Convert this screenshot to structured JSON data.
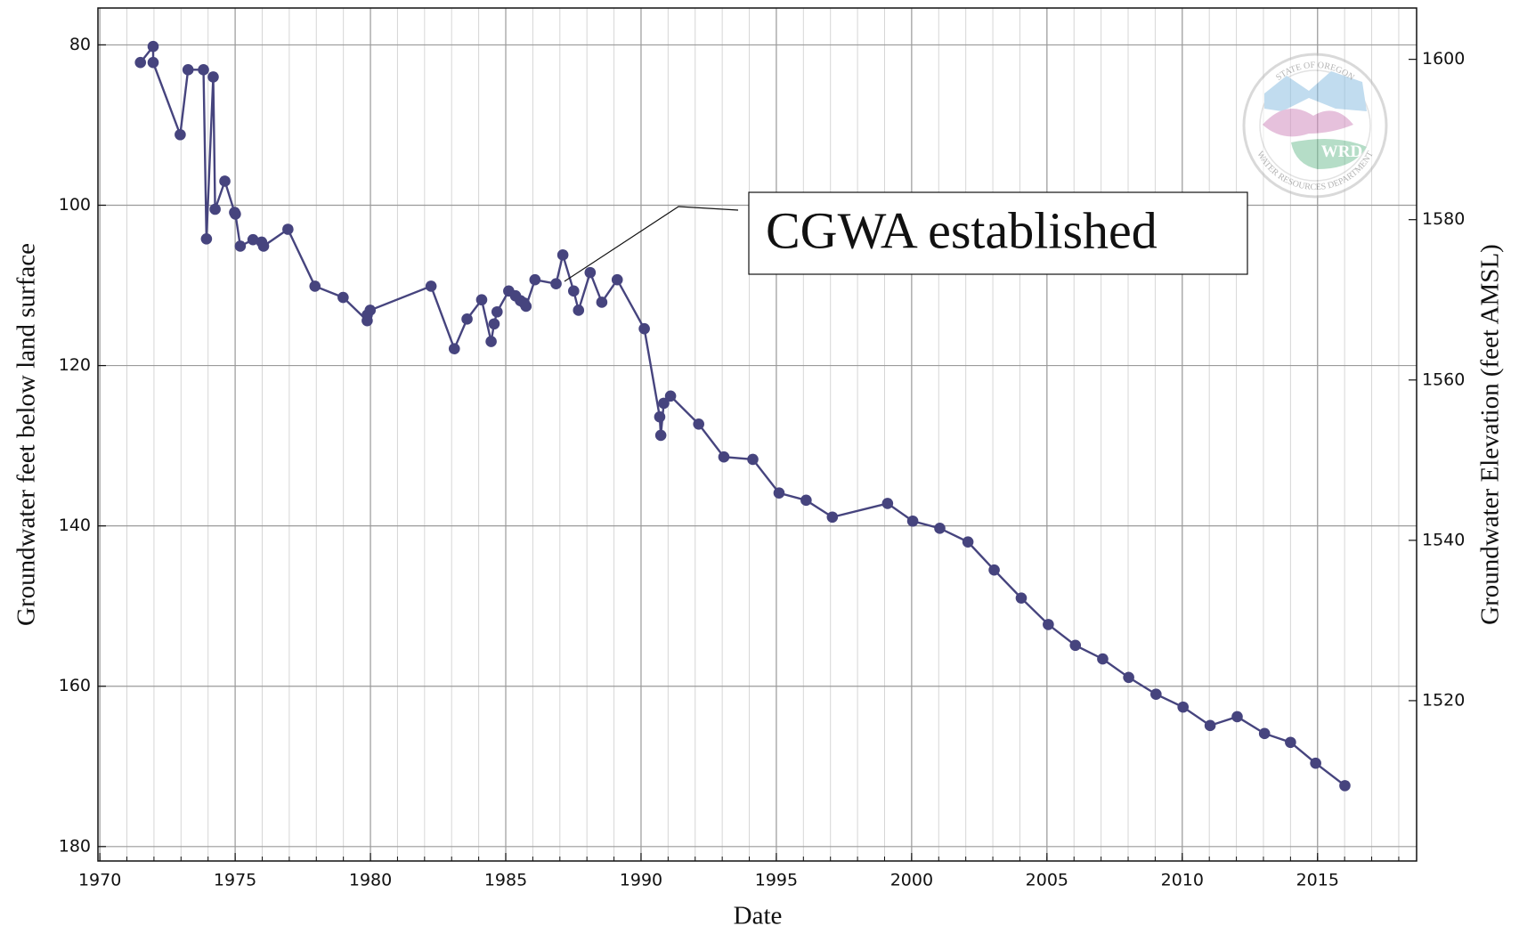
{
  "chart_data": {
    "type": "line",
    "xlabel": "Date",
    "ylabel": "Groundwater feet below land surface",
    "y2label": "Groundwater Elevation (feet AMSL)",
    "color": "#46447e",
    "grid": true,
    "xlim": [
      1969.93,
      2018.66
    ],
    "xticks": [
      1970,
      1975,
      1980,
      1985,
      1990,
      1995,
      2000,
      2005,
      2010,
      2015
    ],
    "xminorticks": [
      1970,
      1971,
      1972,
      1973,
      1974,
      1975,
      1976,
      1977,
      1978,
      1979,
      1980,
      1981,
      1982,
      1983,
      1984,
      1985,
      1986,
      1987,
      1988,
      1989,
      1990,
      1991,
      1992,
      1993,
      1994,
      1995,
      1996,
      1997,
      1998,
      1999,
      2000,
      2001,
      2002,
      2003,
      2004,
      2005,
      2006,
      2007,
      2008,
      2009,
      2010,
      2011,
      2012,
      2013,
      2014,
      2015,
      2016,
      2017,
      2018
    ],
    "ylim": [
      181.8,
      75.4
    ],
    "yticks": [
      80,
      100,
      120,
      140,
      160,
      180
    ],
    "y2lim": [
      1500,
      1606.4
    ],
    "y2ticks": [
      1520,
      1540,
      1560,
      1580,
      1600
    ],
    "x": [
      1971.5,
      1971.97,
      1971.97,
      1972.97,
      1973.26,
      1973.83,
      1973.94,
      1974.19,
      1974.26,
      1974.62,
      1974.98,
      1975.01,
      1975.19,
      1975.66,
      1975.98,
      1976.05,
      1976.95,
      1977.95,
      1978.99,
      1979.88,
      1979.88,
      1979.99,
      1982.24,
      1983.1,
      1983.57,
      1984.11,
      1984.46,
      1984.57,
      1984.68,
      1985.11,
      1985.36,
      1985.54,
      1985.68,
      1985.75,
      1986.08,
      1986.86,
      1987.11,
      1987.51,
      1987.69,
      1988.12,
      1988.55,
      1989.12,
      1990.12,
      1990.69,
      1990.73,
      1990.84,
      1991.09,
      1992.13,
      1993.06,
      1994.13,
      1995.1,
      1996.1,
      1997.07,
      1999.11,
      2000.04,
      2001.04,
      2002.08,
      2003.05,
      2004.05,
      2005.05,
      2006.05,
      2007.06,
      2008.02,
      2009.03,
      2010.03,
      2011.03,
      2012.03,
      2013.04,
      2014.0,
      2014.93,
      2016.01
    ],
    "values": [
      82.2,
      80.2,
      82.2,
      91.2,
      83.1,
      83.1,
      104.2,
      84.0,
      100.5,
      97.0,
      100.9,
      101.1,
      105.1,
      104.3,
      104.6,
      105.1,
      103.0,
      110.1,
      111.5,
      114.4,
      113.7,
      113.1,
      110.1,
      117.9,
      114.2,
      111.8,
      117.0,
      114.8,
      113.3,
      110.7,
      111.3,
      111.9,
      112.2,
      112.6,
      109.3,
      109.8,
      106.2,
      110.7,
      113.1,
      108.4,
      112.1,
      109.3,
      115.4,
      126.4,
      128.7,
      124.7,
      123.8,
      127.3,
      131.4,
      131.7,
      135.9,
      136.8,
      138.9,
      137.2,
      139.4,
      140.3,
      142.0,
      145.5,
      149.0,
      152.3,
      154.9,
      156.6,
      158.9,
      161.0,
      162.6,
      164.9,
      163.8,
      165.9,
      167.0,
      169.6,
      172.4
    ],
    "annotations": [
      {
        "text": "CGWA established"
      }
    ],
    "logo": {
      "top": "STATE OF OREGON",
      "bottom": "WATER RESOURCES DEPARTMENT",
      "mark": "WRD"
    }
  }
}
